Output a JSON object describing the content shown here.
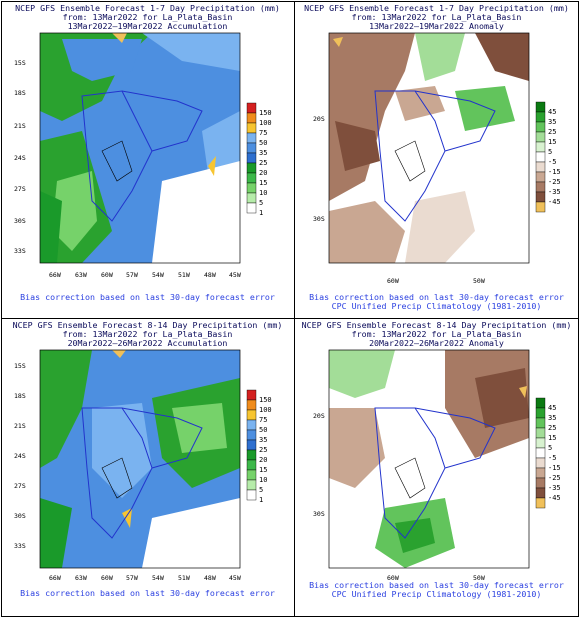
{
  "panels": [
    {
      "title1": "NCEP GFS Ensemble Forecast 1-7 Day Precipitation (mm)",
      "title2": "from: 13Mar2022  for La_Plata_Basin",
      "title3": "13Mar2022—19Mar2022 Accumulation",
      "footer1": "Bias correction based on last 30-day forecast error",
      "footer2": "",
      "lat_labels": [
        "15S",
        "18S",
        "21S",
        "24S",
        "27S",
        "30S",
        "33S"
      ],
      "lon_labels": [
        "66W",
        "63W",
        "60W",
        "57W",
        "54W",
        "51W",
        "48W",
        "45W"
      ],
      "legend": [
        "150",
        "100",
        "75",
        "50",
        "35",
        "25",
        "20",
        "15",
        "10",
        "5",
        "1"
      ]
    },
    {
      "title1": "NCEP GFS Ensemble Forecast 1-7 Day Precipitation (mm)",
      "title2": "from: 13Mar2022  for La_Plata_Basin",
      "title3": "13Mar2022—19Mar2022 Anomaly",
      "footer1": "Bias correction based on last 30-day forecast error",
      "footer2": "CPC Unified Precip Climatology (1981-2010)",
      "lat_labels": [
        "20S",
        "30S"
      ],
      "lon_labels": [
        "60W",
        "50W"
      ],
      "legend": [
        "45",
        "35",
        "25",
        "15",
        "5",
        "-5",
        "-15",
        "-25",
        "-35",
        "-45"
      ]
    },
    {
      "title1": "NCEP GFS Ensemble Forecast 8-14 Day Precipitation (mm)",
      "title2": "from: 13Mar2022  for La_Plata_Basin",
      "title3": "20Mar2022—26Mar2022 Accumulation",
      "footer1": "Bias correction based on last 30-day forecast error",
      "footer2": "",
      "lat_labels": [
        "15S",
        "18S",
        "21S",
        "24S",
        "27S",
        "30S",
        "33S"
      ],
      "lon_labels": [
        "66W",
        "63W",
        "60W",
        "57W",
        "54W",
        "51W",
        "48W",
        "45W"
      ],
      "legend": [
        "150",
        "100",
        "75",
        "50",
        "35",
        "25",
        "20",
        "15",
        "10",
        "5",
        "1"
      ]
    },
    {
      "title1": "NCEP GFS Ensemble Forecast 8-14 Day Precipitation (mm)",
      "title2": "from: 13Mar2022  for La_Plata_Basin",
      "title3": "20Mar2022—26Mar2022 Anomaly",
      "footer1": "Bias correction based on last 30-day forecast error",
      "footer2": "CPC Unified Precip Climatology (1981-2010)",
      "lat_labels": [
        "20S",
        "30S"
      ],
      "lon_labels": [
        "60W",
        "50W"
      ],
      "legend": [
        "45",
        "35",
        "25",
        "15",
        "5",
        "-5",
        "-15",
        "-25",
        "-35",
        "-45"
      ]
    }
  ],
  "accum_colors": [
    "#d42020",
    "#f08c1c",
    "#f7c531",
    "#7ab3f0",
    "#4d8fe0",
    "#2e6fcf",
    "#1a9a2a",
    "#3cb84a",
    "#76d26a",
    "#b6ecaa",
    "#ffffff"
  ],
  "anom_colors": [
    "#0b7a12",
    "#2aa22f",
    "#62c45c",
    "#a3dd98",
    "#d8f2d0",
    "#ffffff",
    "#eadbd0",
    "#c9a792",
    "#a77a64",
    "#7f4f3c",
    "#f0c05a"
  ]
}
